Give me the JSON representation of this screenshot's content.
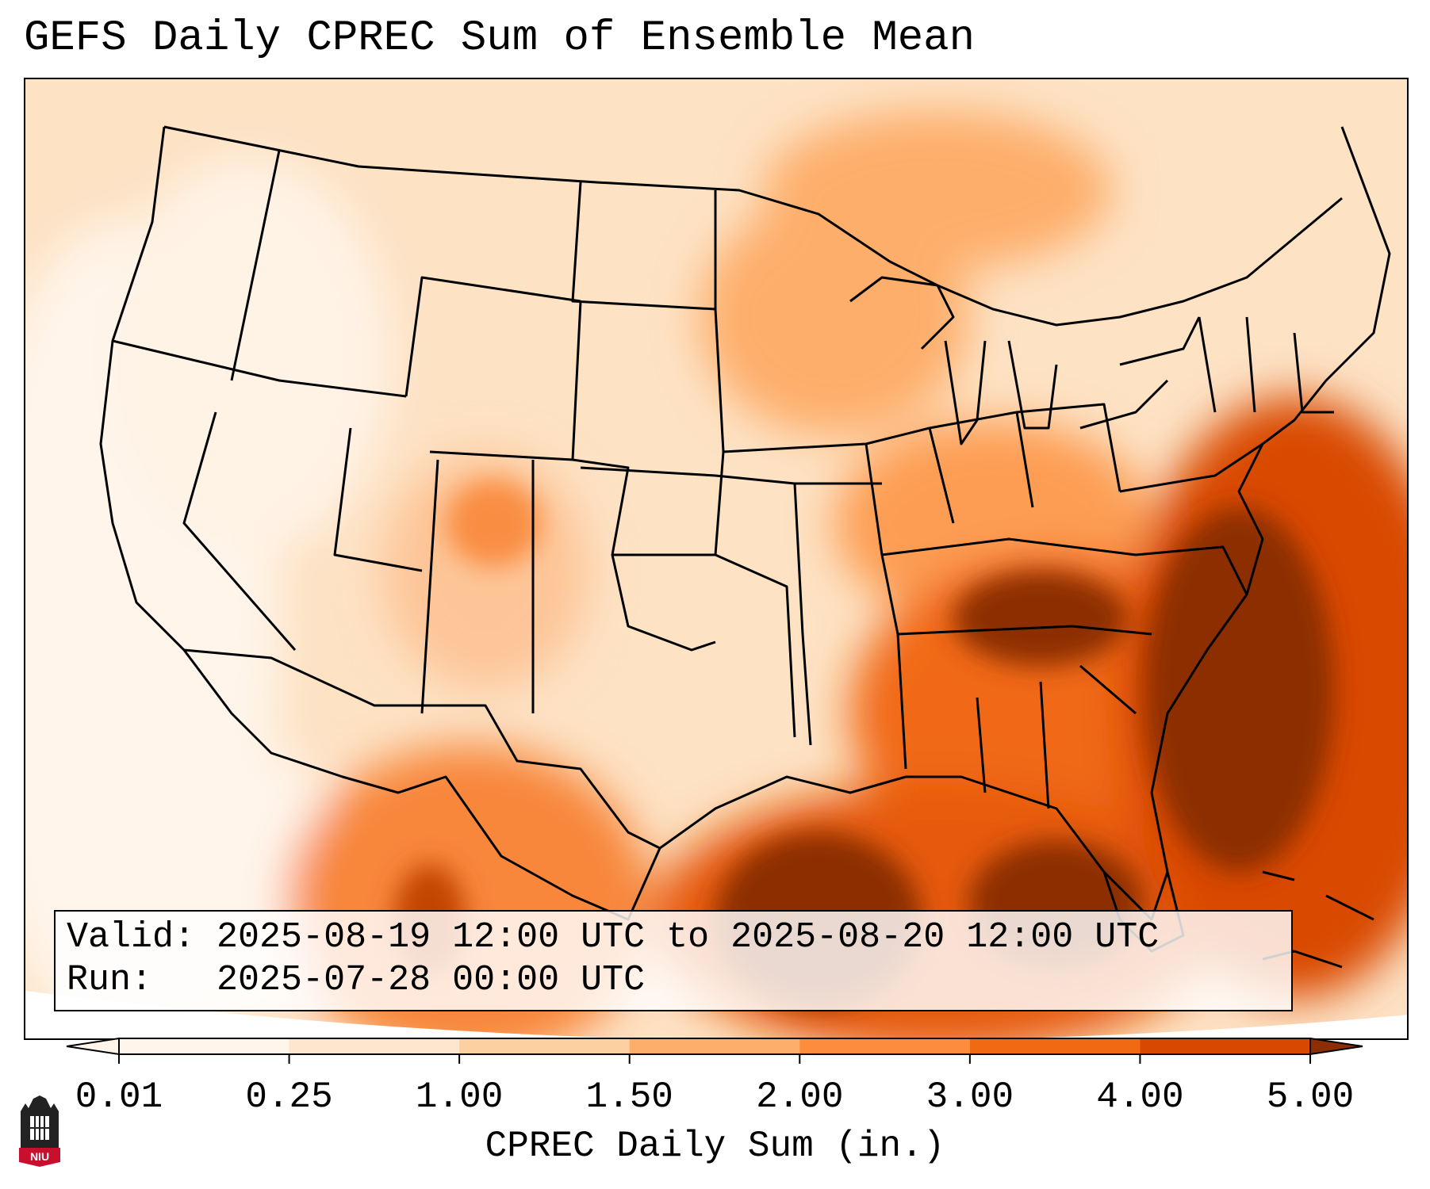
{
  "title": "GEFS Daily CPREC Sum of Ensemble Mean",
  "info": {
    "valid_label": "Valid:",
    "valid_value": "2025-08-19 12:00 UTC to 2025-08-20 12:00 UTC",
    "run_label": "Run:",
    "run_value": "2025-07-28 00:00 UTC"
  },
  "colorbar": {
    "label": "CPREC Daily Sum (in.)",
    "ticks": [
      "0.01",
      "0.25",
      "1.00",
      "1.50",
      "2.00",
      "3.00",
      "4.00",
      "5.00"
    ],
    "colors": [
      "#fff5eb",
      "#fee6ce",
      "#fdd0a2",
      "#fdae6b",
      "#fd8d3c",
      "#f16913",
      "#d94801",
      "#8c2d04"
    ],
    "extend": "both"
  },
  "logo": {
    "text": "NIU",
    "colors": {
      "top": "#222222",
      "band": "#c8102e"
    }
  },
  "map": {
    "projection": "lambert-conformal",
    "region": "contiguous-united-states",
    "colors": {
      "low": "#fff5eb",
      "high": "#8c2d04",
      "border": "#000000"
    }
  }
}
